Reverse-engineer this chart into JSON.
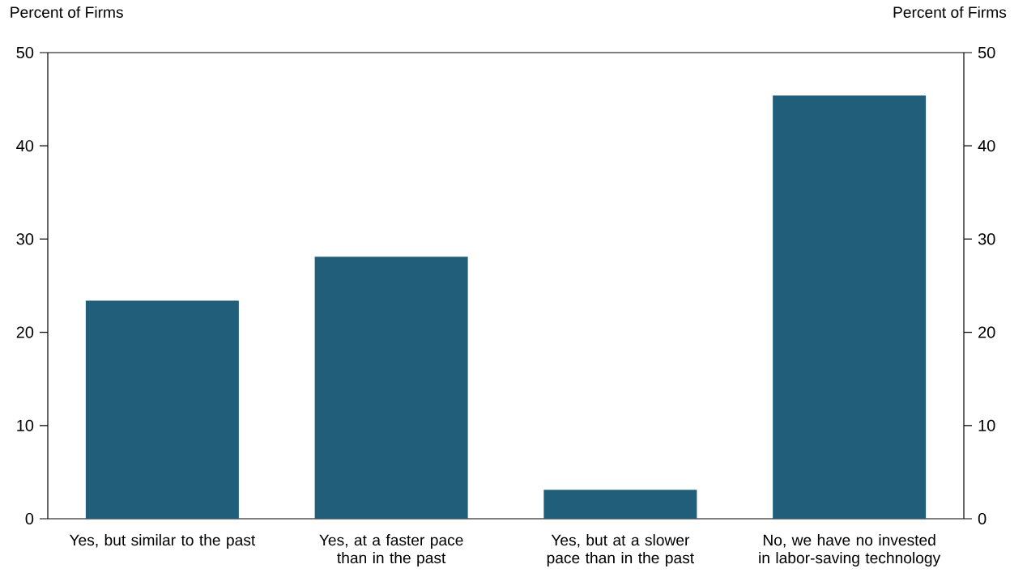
{
  "chart_data": {
    "type": "bar",
    "ylabel": "Percent of Firms",
    "y2label": "Percent of Firms",
    "categories": [
      "Yes, but similar to the past",
      "Yes, at a faster pace than in the past",
      "Yes, but at a slower pace than in the past",
      "No, we have no invested in labor-saving technology"
    ],
    "values": [
      23.4,
      28.1,
      3.1,
      45.4
    ],
    "color": "#215e7a",
    "ylim": [
      0,
      50
    ],
    "yticks": [
      0,
      10,
      20,
      30,
      40,
      50
    ],
    "y2lim": [
      0,
      50
    ],
    "y2ticks": [
      0,
      10,
      20,
      30,
      40,
      50
    ]
  }
}
